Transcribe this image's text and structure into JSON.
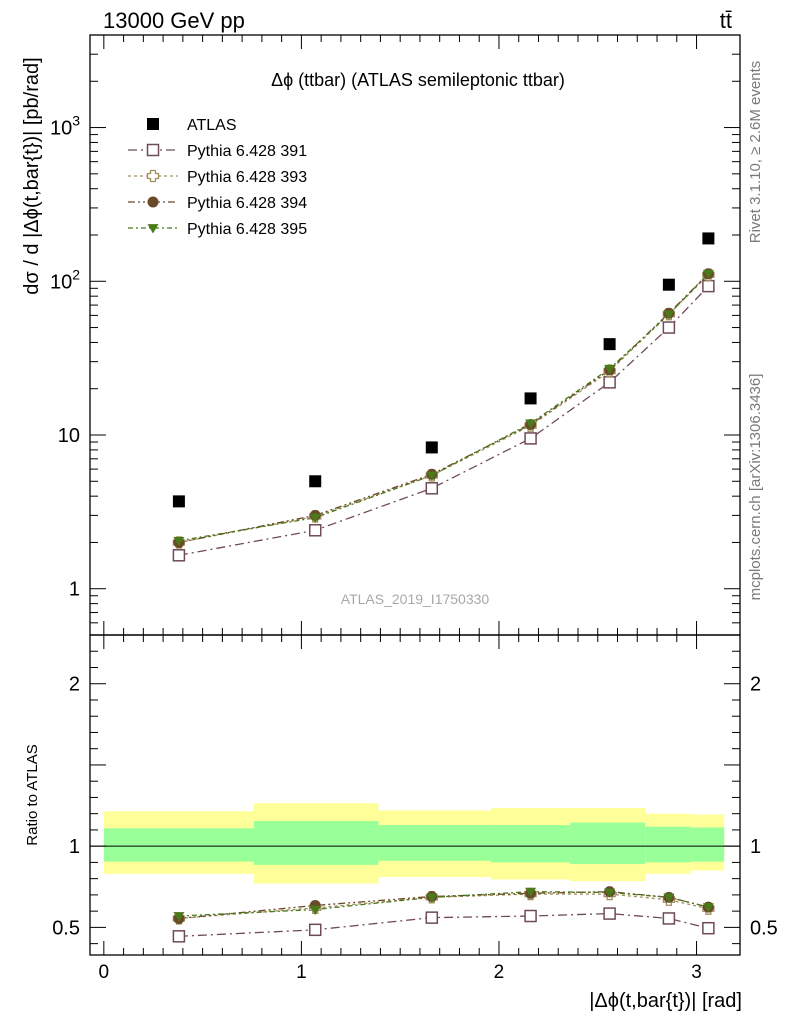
{
  "header": {
    "left": "13000 GeV pp",
    "right": "tt̄"
  },
  "side_text": {
    "top": "Rivet 3.1.10, ≥ 2.6M events",
    "bottom": "mcplots.cern.ch [arXiv:1306.3436]"
  },
  "chart_data": {
    "type": "scatter",
    "title": "Δϕ (ttbar) (ATLAS semileptonic ttbar)",
    "watermark": "ATLAS_2019_I1750330",
    "xlabel": "|Δϕ(t,bar{t})| [rad]",
    "ylabel_main": "dσ / d |Δϕ(t,bar{t})| [pb/rad]",
    "ylabel_ratio": "Ratio to ATLAS",
    "xlim": [
      -0.07,
      3.22
    ],
    "ylim_main": [
      0.5,
      4000
    ],
    "yscale_main": "log",
    "ylim_ratio": [
      0.33,
      2.3
    ],
    "ratio_reference_line": 1,
    "x_ticks": [
      "0",
      "1",
      "2",
      "3"
    ],
    "y_ticks_main": [
      "1",
      "10",
      "10²",
      "10³"
    ],
    "y_ticks_ratio": [
      "0.5",
      "1",
      "2"
    ],
    "legend_position": "top-left",
    "x": [
      0.38,
      1.07,
      1.66,
      2.16,
      2.56,
      2.86,
      3.06
    ],
    "bin_edges": [
      0,
      0.76,
      1.39,
      1.96,
      2.36,
      2.74,
      2.97,
      3.14
    ],
    "series": [
      {
        "name": "ATLAS",
        "values": [
          3.7,
          5.0,
          8.3,
          17.3,
          39,
          95,
          190
        ],
        "color": "#000000",
        "marker": "filled-square"
      },
      {
        "name": "Pythia 6.428 391",
        "values": [
          1.65,
          2.4,
          4.5,
          9.5,
          22,
          50,
          93
        ],
        "ratio": [
          0.445,
          0.485,
          0.56,
          0.57,
          0.585,
          0.555,
          0.495
        ],
        "color": "#6e4a5a",
        "marker": "open-square"
      },
      {
        "name": "Pythia 6.428 393",
        "values": [
          2.0,
          2.95,
          5.45,
          11.5,
          26,
          61,
          110
        ],
        "ratio": [
          0.555,
          0.62,
          0.685,
          0.705,
          0.705,
          0.67,
          0.615
        ],
        "color": "#a09060",
        "marker": "open-cross"
      },
      {
        "name": "Pythia 6.428 394",
        "values": [
          2.0,
          3.0,
          5.55,
          11.7,
          26.5,
          62,
          112
        ],
        "ratio": [
          0.555,
          0.635,
          0.69,
          0.71,
          0.72,
          0.685,
          0.625
        ],
        "color": "#6b4a2a",
        "marker": "filled-circle"
      },
      {
        "name": "Pythia 6.428 395",
        "values": [
          2.05,
          2.9,
          5.45,
          11.9,
          27,
          61,
          112
        ],
        "ratio": [
          0.57,
          0.61,
          0.685,
          0.72,
          0.715,
          0.685,
          0.625
        ],
        "color": "#4a7a1a",
        "marker": "filled-triangle-down"
      }
    ],
    "uncertainty_band_ratio": {
      "stat_low": [
        0.905,
        0.885,
        0.91,
        0.9,
        0.89,
        0.9,
        0.905
      ],
      "stat_high": [
        1.11,
        1.155,
        1.13,
        1.13,
        1.145,
        1.12,
        1.115
      ],
      "total_low": [
        0.83,
        0.77,
        0.81,
        0.795,
        0.785,
        0.83,
        0.85
      ],
      "total_high": [
        1.215,
        1.265,
        1.22,
        1.235,
        1.235,
        1.2,
        1.195
      ],
      "stat_color": "#99ff99",
      "total_color": "#ffff99"
    }
  }
}
